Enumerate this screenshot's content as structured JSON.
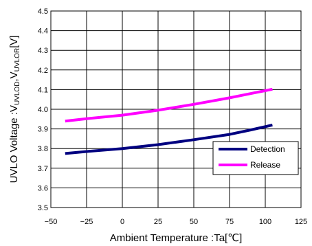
{
  "chart_data": {
    "type": "line",
    "title": "",
    "xlabel": "Ambient Temperature :Ta[℃]",
    "ylabel": {
      "prefix": "UVLO Voltage :V",
      "sub1": "UVLOD",
      "mid": ",V",
      "sub2": "UVLOR",
      "suffix": "[V]"
    },
    "xlim": [
      -50,
      125
    ],
    "ylim": [
      3.5,
      4.5
    ],
    "x_ticks": [
      -50,
      -25,
      0,
      25,
      50,
      75,
      100,
      125
    ],
    "x_tick_labels": [
      "−50",
      "−25",
      "0",
      "25",
      "50",
      "75",
      "100",
      "125"
    ],
    "y_ticks": [
      3.5,
      3.6,
      3.7,
      3.8,
      3.9,
      4.0,
      4.1,
      4.2,
      4.3,
      4.4,
      4.5
    ],
    "y_tick_labels": [
      "3.5",
      "3.6",
      "3.7",
      "3.8",
      "3.9",
      "4.0",
      "4.1",
      "4.2",
      "4.3",
      "4.4",
      "4.5"
    ],
    "grid": true,
    "legend_position": "lower-right",
    "series": [
      {
        "name": "Detection",
        "color": "#000080",
        "points": [
          {
            "x": -40,
            "y": 3.775
          },
          {
            "x": -25,
            "y": 3.785
          },
          {
            "x": 0,
            "y": 3.8
          },
          {
            "x": 25,
            "y": 3.82
          },
          {
            "x": 50,
            "y": 3.845
          },
          {
            "x": 75,
            "y": 3.872
          },
          {
            "x": 90,
            "y": 3.895
          },
          {
            "x": 105,
            "y": 3.92
          }
        ]
      },
      {
        "name": "Release",
        "color": "#ff00ff",
        "points": [
          {
            "x": -40,
            "y": 3.94
          },
          {
            "x": -25,
            "y": 3.952
          },
          {
            "x": 0,
            "y": 3.97
          },
          {
            "x": 25,
            "y": 3.995
          },
          {
            "x": 50,
            "y": 4.025
          },
          {
            "x": 75,
            "y": 4.058
          },
          {
            "x": 90,
            "y": 4.08
          },
          {
            "x": 105,
            "y": 4.102
          }
        ]
      }
    ]
  }
}
